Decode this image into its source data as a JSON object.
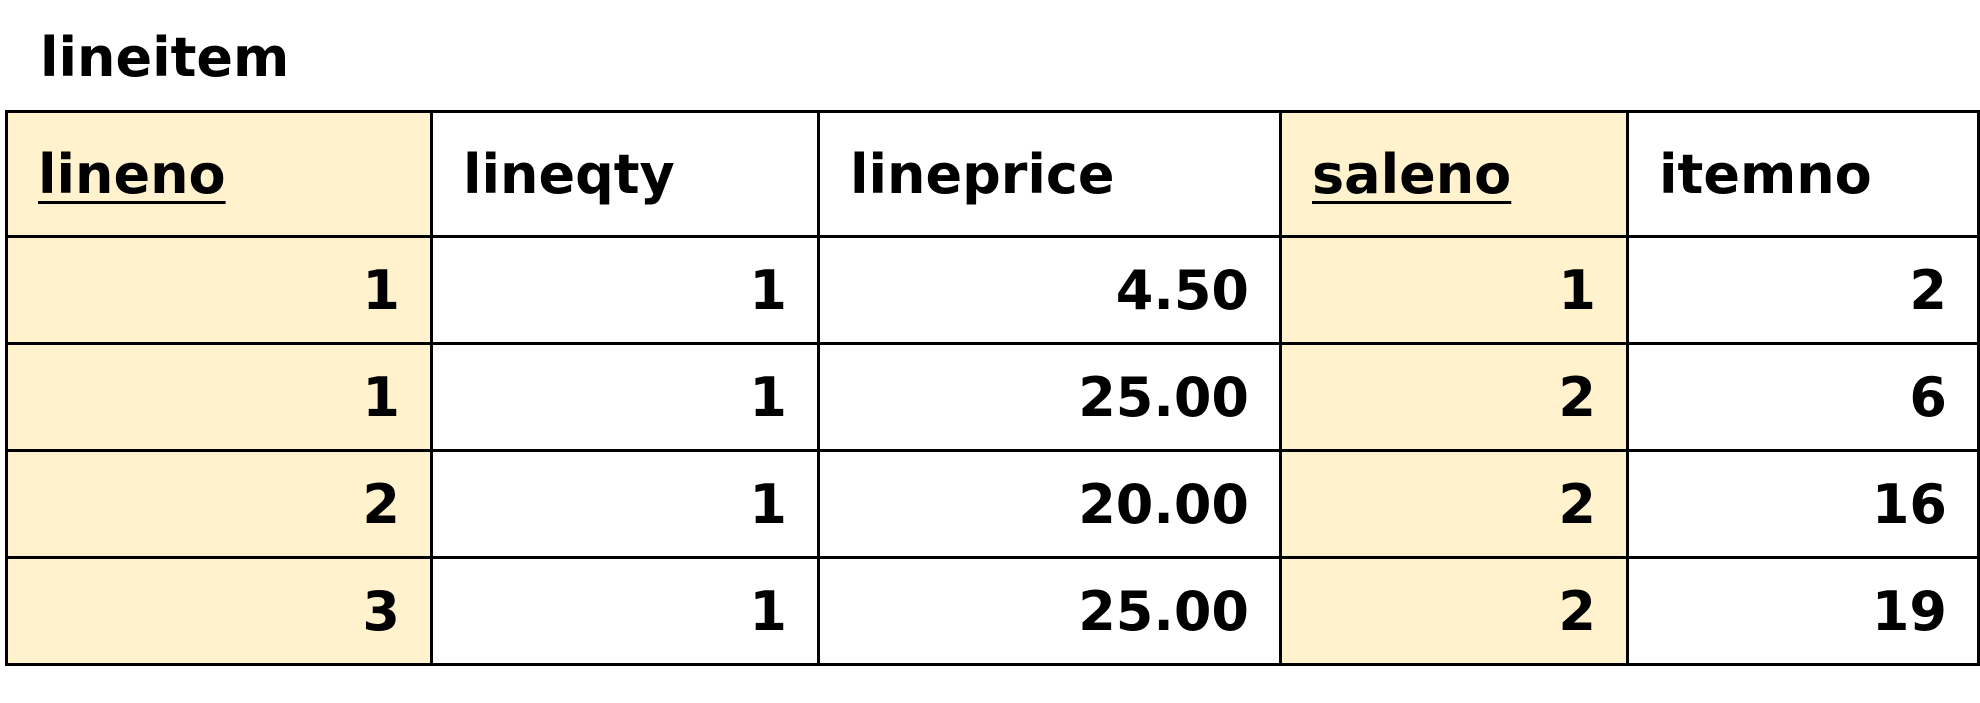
{
  "table": {
    "title": "lineitem",
    "columns": [
      {
        "label": "lineno",
        "key": true
      },
      {
        "label": "lineqty",
        "key": false
      },
      {
        "label": "lineprice",
        "key": false
      },
      {
        "label": "saleno",
        "key": true
      },
      {
        "label": "itemno",
        "key": false
      }
    ],
    "rows": [
      [
        "1",
        "1",
        "4.50",
        "1",
        "2"
      ],
      [
        "1",
        "1",
        "25.00",
        "2",
        "6"
      ],
      [
        "2",
        "1",
        "20.00",
        "2",
        "16"
      ],
      [
        "3",
        "1",
        "25.00",
        "2",
        "19"
      ]
    ],
    "key_highlight_color": "#fff2cc"
  }
}
